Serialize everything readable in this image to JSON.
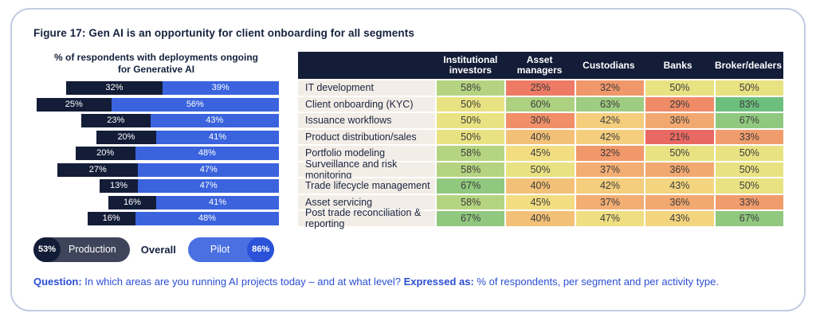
{
  "figure": {
    "title": "Figure 17: Gen AI is an opportunity for client onboarding for all segments",
    "question_label": "Question:",
    "question_text": " In which areas are you running AI projects today – and at what level? ",
    "expressed_label": "Expressed as:",
    "expressed_text": " % of respondents, per segment and per activity type."
  },
  "chart_data": [
    {
      "type": "bar",
      "variant": "horizontal-stacked-right-aligned",
      "title": "% of respondents with deployments ongoing for Generative AI",
      "categories": [
        "IT development",
        "Client onboarding (KYC)",
        "Issuance workflows",
        "Product distribution/sales",
        "Portfolio modeling",
        "Surveillance and risk monitoring",
        "Trade lifecycle management",
        "Asset servicing",
        "Post trade reconciliation & reporting"
      ],
      "series": [
        {
          "name": "Production",
          "values": [
            32,
            25,
            23,
            20,
            20,
            27,
            13,
            16,
            16
          ]
        },
        {
          "name": "Pilot",
          "values": [
            39,
            56,
            43,
            41,
            48,
            47,
            47,
            41,
            48
          ]
        }
      ],
      "unit": "%",
      "xmax": 82,
      "legend_position": "bottom",
      "legend": {
        "production_overall": "53%",
        "production_label": "Production",
        "overall_label": "Overall",
        "pilot_label": "Pilot",
        "pilot_overall": "86%"
      },
      "colors": {
        "production": "#131d38",
        "pilot": "#3a63dd",
        "production_pill": "#3e4459",
        "production_circle": "#131d38",
        "pilot_pill": "#4a70e2",
        "pilot_circle": "#2b52d8"
      }
    },
    {
      "type": "heatmap",
      "columns": [
        "Institutional investors",
        "Asset managers",
        "Custodians",
        "Banks",
        "Broker/dealers"
      ],
      "rows": [
        "IT development",
        "Client onboarding (KYC)",
        "Issuance workflows",
        "Product distribution/sales",
        "Portfolio modeling",
        "Surveillance and risk monitoring",
        "Trade lifecycle management",
        "Asset servicing",
        "Post trade reconciliation & reporting"
      ],
      "values": [
        [
          58,
          25,
          32,
          50,
          50
        ],
        [
          50,
          60,
          63,
          29,
          83
        ],
        [
          50,
          30,
          42,
          36,
          67
        ],
        [
          50,
          40,
          42,
          21,
          33
        ],
        [
          58,
          45,
          32,
          50,
          50
        ],
        [
          58,
          50,
          37,
          36,
          50
        ],
        [
          67,
          40,
          42,
          43,
          50
        ],
        [
          58,
          45,
          37,
          36,
          33
        ],
        [
          67,
          40,
          47,
          43,
          67
        ]
      ],
      "unit": "%",
      "header_bg": "#131d38",
      "label_bg": "#f2ede6",
      "color_stops": [
        [
          20,
          "#e96461"
        ],
        [
          30,
          "#f08f68"
        ],
        [
          38,
          "#f3b274"
        ],
        [
          44,
          "#f4dc81"
        ],
        [
          50,
          "#e9e282"
        ],
        [
          58,
          "#b5d481"
        ],
        [
          65,
          "#95c97f"
        ],
        [
          83,
          "#6dbf7e"
        ]
      ]
    }
  ]
}
